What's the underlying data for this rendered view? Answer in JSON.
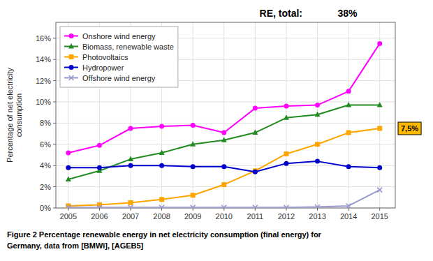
{
  "chart_data": {
    "type": "line",
    "y_label": "Percentage of net electricity\nconsumption",
    "annotations": [
      "RE, total:",
      "38%",
      "7,5%"
    ],
    "caption": [
      "Figure 2 Percentage renewable energy in net electricity consumption (final energy) for",
      "Germany, data from [BMWi], [AGEB5]"
    ],
    "x": [
      2005,
      2006,
      2007,
      2008,
      2009,
      2010,
      2011,
      2012,
      2013,
      2014,
      2015
    ],
    "xlim": [
      2004.6,
      2015.5
    ],
    "xticks": [
      2005,
      2006,
      2007,
      2008,
      2009,
      2010,
      2011,
      2012,
      2013,
      2014,
      2015
    ],
    "ylim": [
      0,
      17.5
    ],
    "yticks": [
      {
        "value": 0,
        "label": "0%"
      },
      {
        "value": 2,
        "label": "2%"
      },
      {
        "value": 4,
        "label": "4%"
      },
      {
        "value": 6,
        "label": "6%"
      },
      {
        "value": 8,
        "label": "8%"
      },
      {
        "value": 10,
        "label": "10%"
      },
      {
        "value": 12,
        "label": "12%"
      },
      {
        "value": 14,
        "label": "14%"
      },
      {
        "value": 16,
        "label": "16%"
      }
    ],
    "grid": true,
    "legend": "upper left",
    "series": [
      {
        "name": "Onshore wind energy",
        "color": "#FF00FF",
        "marker": "circle",
        "values": [
          5.2,
          5.9,
          7.5,
          7.7,
          7.8,
          7.1,
          9.4,
          9.6,
          9.7,
          11.0,
          15.5
        ]
      },
      {
        "name": "Biomass, renewable waste",
        "color": "#228B22",
        "marker": "triangle",
        "values": [
          2.7,
          3.5,
          4.6,
          5.2,
          6.0,
          6.4,
          7.1,
          8.5,
          8.8,
          9.7,
          9.7
        ]
      },
      {
        "name": "Photovoltaics",
        "color": "#FFA500",
        "marker": "square",
        "values": [
          0.2,
          0.3,
          0.5,
          0.8,
          1.2,
          2.2,
          3.5,
          5.1,
          6.0,
          7.1,
          7.5
        ]
      },
      {
        "name": "Hydropower",
        "color": "#0000CD",
        "marker": "circle",
        "values": [
          3.8,
          3.8,
          4.0,
          4.0,
          3.9,
          3.9,
          3.4,
          4.2,
          4.4,
          3.9,
          3.8
        ]
      },
      {
        "name": "Offshore wind energy",
        "color": "#9999CC",
        "marker": "x",
        "values": [
          0.05,
          0.05,
          0.05,
          0.05,
          0.05,
          0.05,
          0.05,
          0.05,
          0.1,
          0.2,
          1.7
        ]
      }
    ]
  }
}
